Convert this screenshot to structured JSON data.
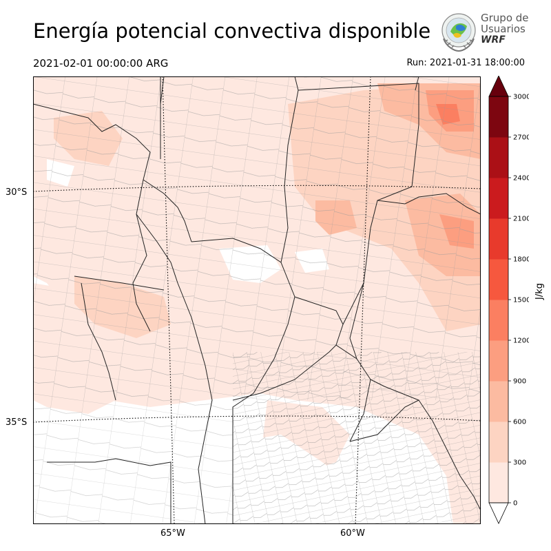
{
  "title": "Energía potencial convectiva disponible",
  "valid_time": "2021-02-01 00:00:00 ARG",
  "run_label": "Run: 2021-01-31 18:00:00",
  "logo": {
    "line1": "Grupo de",
    "line2": "Usuarios",
    "brand": "WRF",
    "icon": "wrf-group-emblem-icon"
  },
  "map": {
    "lat_labels": [
      "30°S",
      "35°S"
    ],
    "lon_labels": [
      "65°W",
      "60°W"
    ],
    "background": "#ffffff",
    "border_color": "#000000"
  },
  "colorbar": {
    "units": "J/kg",
    "ticks": [
      "0",
      "300",
      "600",
      "900",
      "1200",
      "1500",
      "1800",
      "2100",
      "2400",
      "2700",
      "3000"
    ],
    "colors": [
      "#fee8e0",
      "#fdd4c2",
      "#fcbba1",
      "#fc9e80",
      "#fb7f61",
      "#f6583e",
      "#e83a2c",
      "#cb1b1e",
      "#ab1016",
      "#7d0610"
    ],
    "over_color": "#67000d",
    "under_color": "#ffffff"
  }
}
